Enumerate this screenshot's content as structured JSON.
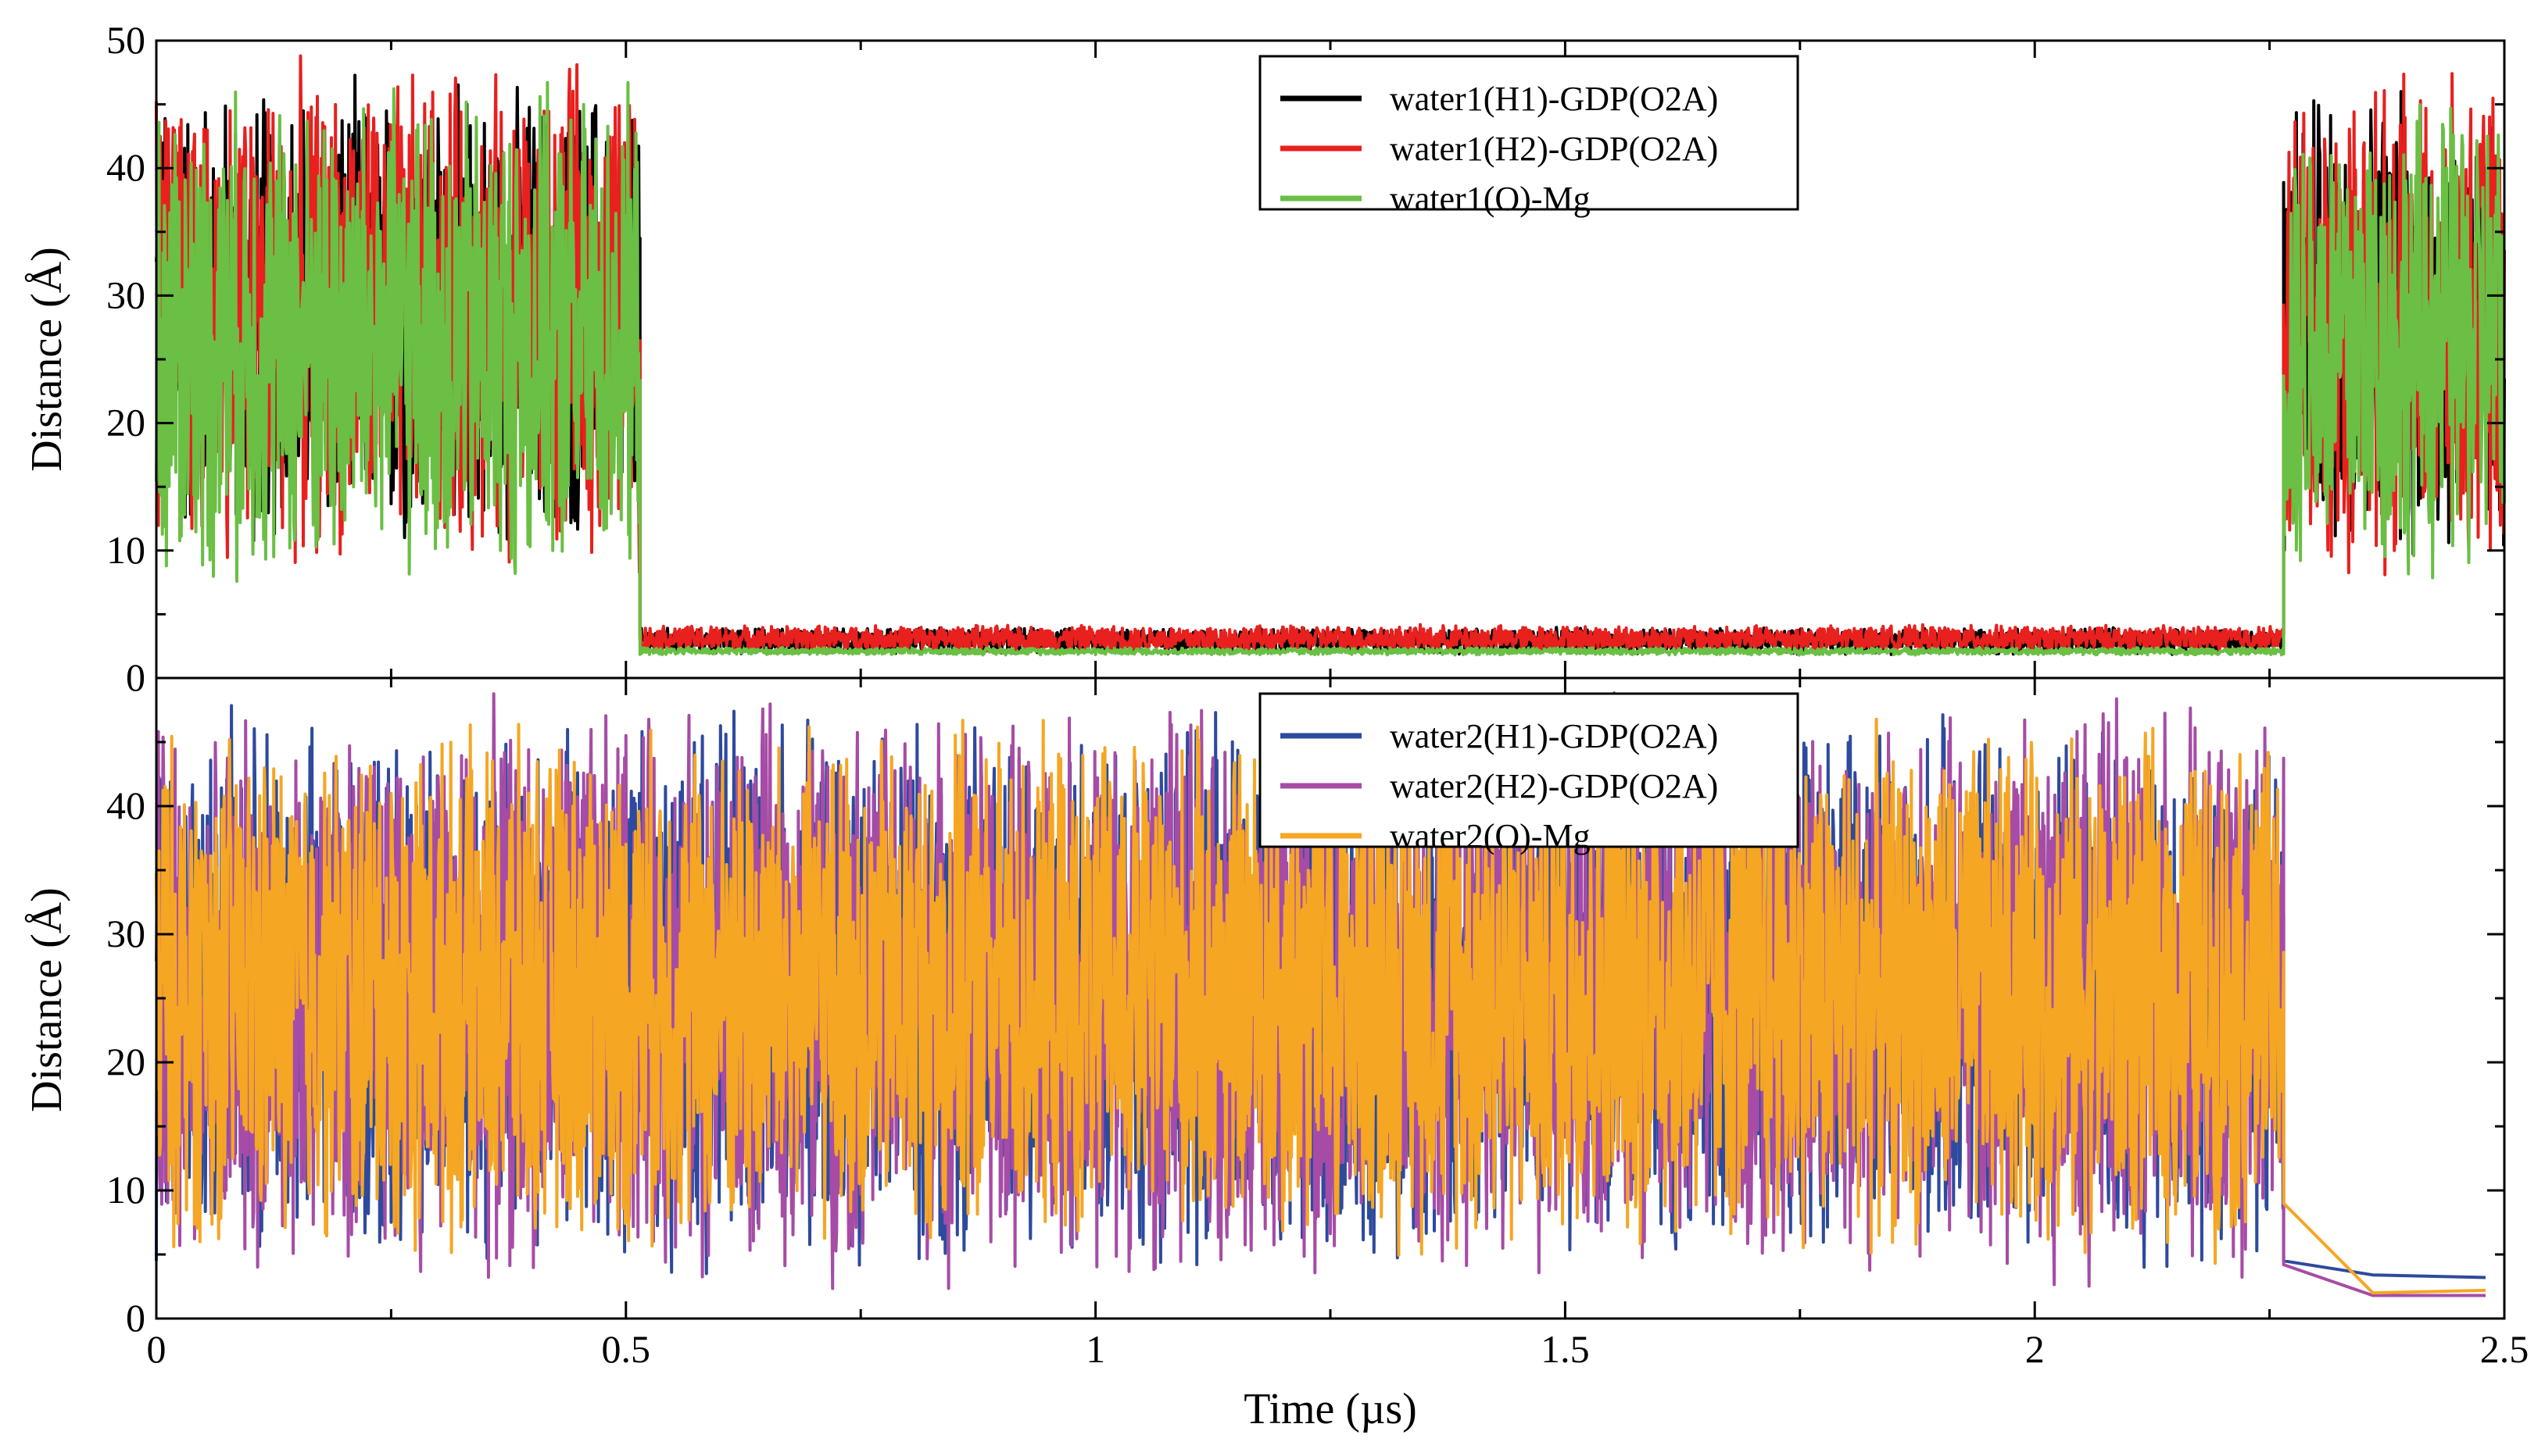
{
  "chart_data": [
    {
      "id": "top",
      "type": "line",
      "title": "",
      "xlabel": "",
      "ylabel": "Distance (Å)",
      "xlim": [
        0,
        2.5
      ],
      "ylim": [
        0,
        50
      ],
      "xticks": [],
      "yticks": [
        0,
        10,
        20,
        30,
        40,
        50
      ],
      "ytick_labels": [
        "0",
        "10",
        "20",
        "30",
        "40",
        "50"
      ],
      "legend_position": "top-center",
      "series": [
        {
          "name": "water1(H1)-GDP(O2A)",
          "color": "#000000",
          "segments": [
            {
              "x": [
                0,
                0.515
              ],
              "mode": "noise",
              "range": [
                9,
                48
              ]
            },
            {
              "x": [
                0.515,
                2.265
              ],
              "mode": "noise",
              "range": [
                1.8,
                4.0
              ]
            },
            {
              "x": [
                2.265,
                2.5
              ],
              "mode": "noise",
              "range": [
                8,
                48
              ]
            }
          ]
        },
        {
          "name": "water1(H2)-GDP(O2A)",
          "color": "#e8201e",
          "segments": [
            {
              "x": [
                0,
                0.515
              ],
              "mode": "noise",
              "range": [
                8,
                49
              ]
            },
            {
              "x": [
                0.515,
                2.265
              ],
              "mode": "noise",
              "range": [
                2.0,
                4.2
              ]
            },
            {
              "x": [
                2.265,
                2.5
              ],
              "mode": "noise",
              "range": [
                7,
                48
              ]
            }
          ]
        },
        {
          "name": "water1(O)-Mg",
          "color": "#6abf44",
          "segments": [
            {
              "x": [
                0,
                0.515
              ],
              "mode": "noise",
              "range": [
                6,
                47
              ]
            },
            {
              "x": [
                0.515,
                2.265
              ],
              "mode": "noise",
              "range": [
                1.8,
                2.4
              ]
            },
            {
              "x": [
                2.265,
                2.5
              ],
              "mode": "noise",
              "range": [
                6,
                47
              ]
            }
          ]
        }
      ]
    },
    {
      "id": "bottom",
      "type": "line",
      "title": "",
      "xlabel": "Time (µs)",
      "ylabel": "Distance (Å)",
      "xlim": [
        0,
        2.5
      ],
      "ylim": [
        0,
        50
      ],
      "xticks": [
        0,
        0.5,
        1,
        1.5,
        2,
        2.5
      ],
      "xtick_labels": [
        "0",
        "0.5",
        "1",
        "1.5",
        "2",
        "2.5"
      ],
      "yticks": [
        0,
        10,
        20,
        30,
        40
      ],
      "ytick_labels": [
        "0",
        "10",
        "20",
        "30",
        "40"
      ],
      "legend_position": "top-center",
      "series": [
        {
          "name": "water2(H1)-GDP(O2A)",
          "color": "#2e4a9e",
          "segments": [
            {
              "x": [
                0,
                2.265
              ],
              "mode": "noise",
              "range": [
                3,
                48
              ]
            },
            {
              "x": [
                2.265,
                2.36,
                2.48
              ],
              "y": [
                4.5,
                3.4,
                3.2
              ],
              "mode": "line"
            }
          ]
        },
        {
          "name": "water2(H2)-GDP(O2A)",
          "color": "#a64ca6",
          "segments": [
            {
              "x": [
                0,
                2.265
              ],
              "mode": "noise",
              "range": [
                2,
                49
              ]
            },
            {
              "x": [
                2.265,
                2.36,
                2.48
              ],
              "y": [
                4.2,
                1.8,
                1.8
              ],
              "mode": "line"
            }
          ]
        },
        {
          "name": "water2(O)-Mg",
          "color": "#f5a623",
          "segments": [
            {
              "x": [
                0,
                2.265
              ],
              "mode": "noise",
              "range": [
                4,
                47
              ]
            },
            {
              "x": [
                2.265,
                2.36,
                2.48
              ],
              "y": [
                9.0,
                2.0,
                2.2
              ],
              "mode": "line"
            }
          ]
        }
      ]
    }
  ]
}
